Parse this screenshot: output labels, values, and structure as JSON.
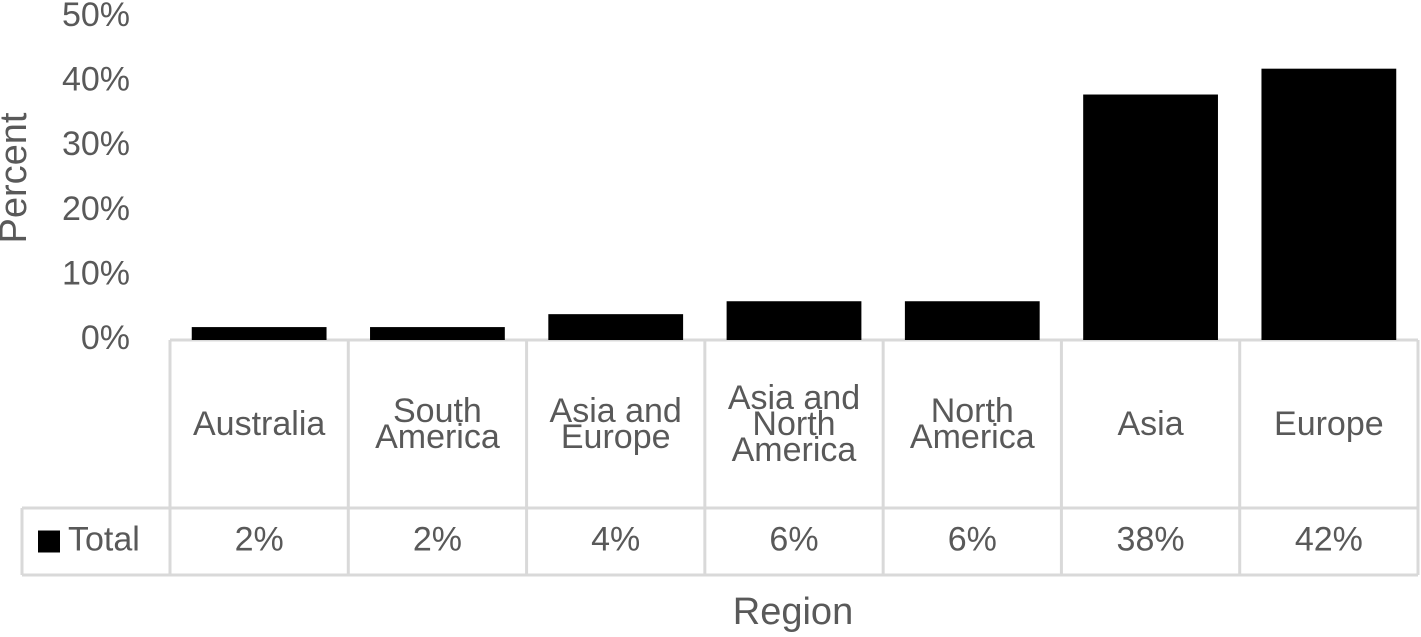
{
  "chart_data": {
    "type": "bar",
    "x_label": "Region",
    "y_label": "Percent",
    "categories": [
      "Australia",
      "South America",
      "Asia and Europe",
      "Asia and North America",
      "North America",
      "Asia",
      "Europe"
    ],
    "series": [
      {
        "name": "Total",
        "color": "#000000",
        "values": [
          2,
          2,
          4,
          6,
          6,
          38,
          42
        ],
        "value_labels": [
          "2%",
          "2%",
          "4%",
          "6%",
          "6%",
          "38%",
          "42%"
        ]
      }
    ],
    "ylim": [
      0,
      50
    ],
    "yticks": [
      {
        "value": 0,
        "label": "0%"
      },
      {
        "value": 10,
        "label": "10%"
      },
      {
        "value": 20,
        "label": "20%"
      },
      {
        "value": 30,
        "label": "30%"
      },
      {
        "value": 40,
        "label": "40%"
      },
      {
        "value": 50,
        "label": "50%"
      }
    ],
    "grid": false
  }
}
